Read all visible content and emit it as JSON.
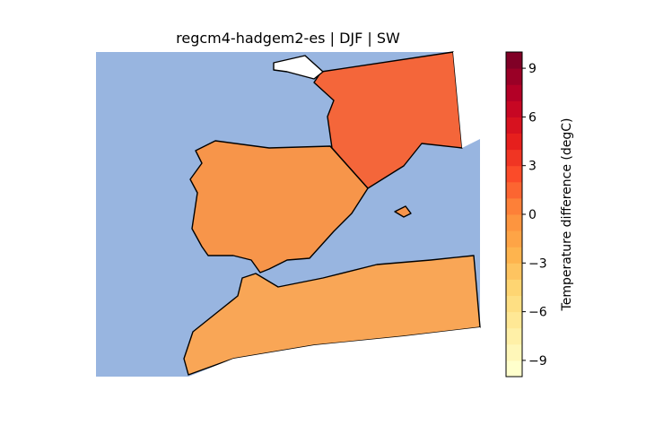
{
  "title": "regcm4-hadgem2-es | DJF | SW",
  "colorbar": {
    "label": "Temperature difference (degC)",
    "lim": [
      -10,
      10
    ],
    "ticks": [
      {
        "value": -9,
        "label": "−9"
      },
      {
        "value": -6,
        "label": "−6"
      },
      {
        "value": -3,
        "label": "−3"
      },
      0,
      3,
      6,
      9
    ],
    "levels": 20,
    "colors": [
      "#ffffcc",
      "#ffeda0",
      "#fed976",
      "#feb24c",
      "#fd8d3c",
      "#fc4e2a",
      "#e31a1c",
      "#bd0026",
      "#800026"
    ]
  }
}
